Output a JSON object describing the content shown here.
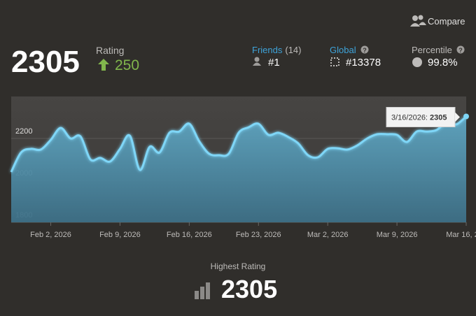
{
  "header": {
    "compare": "Compare",
    "rating": 2305,
    "rating_label": "Rating",
    "rating_change": 250,
    "friends_label": "Friends",
    "friends_count": "(14)",
    "friends_rank": "#1",
    "global_label": "Global",
    "global_rank": "#13378",
    "percentile_label": "Percentile",
    "percentile": "99.8%"
  },
  "chart_data": {
    "type": "area",
    "x": [
      "2026-01-29",
      "2026-01-30",
      "2026-01-31",
      "2026-02-01",
      "2026-02-02",
      "2026-02-03",
      "2026-02-04",
      "2026-02-05",
      "2026-02-06",
      "2026-02-07",
      "2026-02-08",
      "2026-02-09",
      "2026-02-10",
      "2026-02-11",
      "2026-02-12",
      "2026-02-13",
      "2026-02-14",
      "2026-02-15",
      "2026-02-16",
      "2026-02-17",
      "2026-02-18",
      "2026-02-19",
      "2026-02-20",
      "2026-02-21",
      "2026-02-22",
      "2026-02-23",
      "2026-02-24",
      "2026-02-25",
      "2026-02-26",
      "2026-02-27",
      "2026-02-28",
      "2026-03-01",
      "2026-03-02",
      "2026-03-03",
      "2026-03-04",
      "2026-03-05",
      "2026-03-06",
      "2026-03-07",
      "2026-03-08",
      "2026-03-09",
      "2026-03-10",
      "2026-03-11",
      "2026-03-12",
      "2026-03-13",
      "2026-03-14",
      "2026-03-15",
      "2026-03-16"
    ],
    "values": [
      2040,
      2133,
      2150,
      2147,
      2193,
      2250,
      2200,
      2210,
      2100,
      2107,
      2090,
      2150,
      2213,
      2050,
      2160,
      2133,
      2227,
      2233,
      2270,
      2187,
      2127,
      2120,
      2127,
      2227,
      2253,
      2270,
      2217,
      2227,
      2207,
      2177,
      2120,
      2110,
      2150,
      2153,
      2147,
      2167,
      2200,
      2220,
      2220,
      2217,
      2183,
      2233,
      2233,
      2240,
      2277,
      2267,
      2305
    ],
    "color": "#7fd6f7",
    "xlim": [
      "2026-01-29",
      "2026-03-16"
    ],
    "xticks": [
      {
        "value": "2026-02-02",
        "label": "Feb 2, 2026"
      },
      {
        "value": "2026-02-09",
        "label": "Feb 9, 2026"
      },
      {
        "value": "2026-02-16",
        "label": "Feb 16, 2026"
      },
      {
        "value": "2026-02-23",
        "label": "Feb 23, 2026"
      },
      {
        "value": "2026-03-02",
        "label": "Mar 2, 2026"
      },
      {
        "value": "2026-03-09",
        "label": "Mar 9, 2026"
      },
      {
        "value": "2026-03-16",
        "label": "Mar 16, 2…"
      }
    ],
    "ylim": [
      1800,
      2400
    ],
    "yticks": [
      1800,
      2000,
      2200
    ],
    "grid": true,
    "tooltip": {
      "label": "3/16/2026:",
      "value": 2305
    }
  },
  "footer": {
    "label": "Highest Rating",
    "value": 2305
  }
}
